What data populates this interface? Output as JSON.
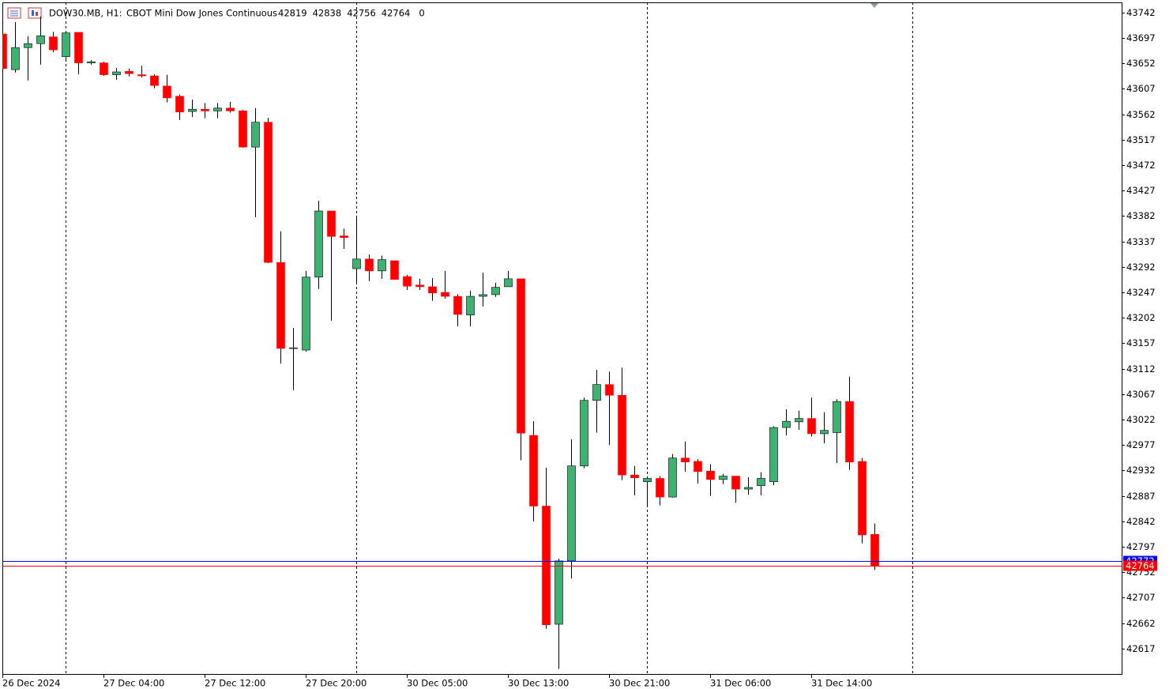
{
  "chart_data": {
    "type": "candlestick",
    "symbol": "DOW30.MB, H1:",
    "description": "CBOT Mini Dow Jones Continuous",
    "header_extra": 0,
    "categories": [
      "26 Dec 2024",
      null,
      null,
      null,
      null,
      null,
      null,
      null,
      "27 Dec 04:00",
      null,
      null,
      null,
      null,
      null,
      null,
      null,
      "27 Dec 12:00",
      null,
      null,
      null,
      null,
      null,
      null,
      null,
      "27 Dec 20:00",
      null,
      null,
      null,
      null,
      null,
      null,
      null,
      "30 Dec 05:00",
      null,
      null,
      null,
      null,
      null,
      null,
      null,
      "30 Dec 13:00",
      null,
      null,
      null,
      null,
      null,
      null,
      null,
      "30 Dec 21:00",
      null,
      null,
      null,
      null,
      null,
      null,
      null,
      "31 Dec 06:00",
      null,
      null,
      null,
      null,
      null,
      null,
      null,
      "31 Dec 14:00",
      null,
      null,
      null,
      null,
      null
    ],
    "series": [
      {
        "up_color": "#3cb371",
        "down_color": "#ff0000",
        "open": [
          43704,
          43641,
          43680,
          43687,
          43699,
          43664,
          43707,
          43653,
          43653,
          43632,
          43638,
          43632,
          43630,
          43612,
          43594,
          43567,
          43571,
          43568,
          43573,
          43568,
          43504,
          43548,
          43300,
          43148,
          43145,
          43274,
          43391,
          43347,
          43289,
          43306,
          43285,
          43303,
          43275,
          43260,
          43257,
          43247,
          43240,
          43207,
          43240,
          43243,
          43257,
          43271,
          42994,
          42869,
          42660,
          42772,
          42940,
          43056,
          43084,
          43065,
          42924,
          42912,
          42918,
          42885,
          42954,
          42948,
          42931,
          42916,
          42922,
          42899,
          42905,
          42912,
          43008,
          43018,
          43024,
          42997,
          42999,
          43054,
          42948,
          42819
        ],
        "high": [
          43704,
          43725,
          43700,
          43735,
          43708,
          43708,
          43707,
          43658,
          43655,
          43644,
          43643,
          43648,
          43633,
          43632,
          43597,
          43588,
          43582,
          43582,
          43584,
          43570,
          43573,
          43556,
          43355,
          43184,
          43285,
          43409,
          43391,
          43360,
          43383,
          43314,
          43312,
          43303,
          43278,
          43271,
          43272,
          43285,
          43244,
          43250,
          43282,
          43264,
          43285,
          43271,
          43019,
          42937,
          42776,
          42987,
          43061,
          43110,
          43107,
          43114,
          42940,
          42922,
          42922,
          42961,
          42983,
          42952,
          42943,
          42926,
          42922,
          42920,
          42929,
          43010,
          43040,
          43038,
          43061,
          43035,
          43058,
          43098,
          42954,
          42838
        ],
        "low": [
          43642,
          43636,
          43622,
          43650,
          43672,
          43655,
          43633,
          43650,
          43630,
          43623,
          43629,
          43627,
          43608,
          43583,
          43552,
          43557,
          43555,
          43555,
          43565,
          43503,
          43380,
          43299,
          43121,
          43074,
          43142,
          43253,
          43197,
          43324,
          43264,
          43267,
          43271,
          43270,
          43251,
          43251,
          43232,
          43236,
          43187,
          43187,
          43222,
          43239,
          43257,
          42950,
          42842,
          42652,
          42581,
          42741,
          42936,
          42999,
          42977,
          42915,
          42888,
          42870,
          42870,
          42884,
          42930,
          42909,
          42887,
          42908,
          42875,
          42889,
          42888,
          42906,
          42994,
          43004,
          42992,
          42980,
          42945,
          42933,
          42803,
          42756
        ],
        "close": [
          43643,
          43680,
          43687,
          43701,
          43676,
          43706,
          43653,
          43655,
          43632,
          43637,
          43634,
          43630,
          43613,
          43591,
          43566,
          43571,
          43568,
          43573,
          43568,
          43504,
          43548,
          43300,
          43148,
          43149,
          43274,
          43391,
          43346,
          43344,
          43306,
          43285,
          43305,
          43270,
          43258,
          43257,
          43246,
          43240,
          43208,
          43240,
          43243,
          43256,
          43271,
          42998,
          42869,
          42659,
          42772,
          42940,
          43056,
          43084,
          43065,
          42924,
          42919,
          42918,
          42885,
          42954,
          42947,
          42930,
          42916,
          42922,
          42899,
          42902,
          42918,
          43008,
          43019,
          43024,
          42997,
          43003,
          43054,
          42947,
          42818,
          42764
        ]
      }
    ],
    "ask_price": 42772,
    "ask_color": "#0000ff",
    "period_separators": [
      5,
      28,
      51,
      72
    ],
    "ylim": [
      42572,
      43760
    ],
    "yticks": [
      43742,
      43697,
      43652,
      43607,
      43562,
      43517,
      43472,
      43427,
      43382,
      43337,
      43292,
      43247,
      43202,
      43157,
      43112,
      43067,
      43022,
      42977,
      42932,
      42887,
      42842,
      42797,
      42752,
      42707,
      42662,
      42617
    ]
  }
}
